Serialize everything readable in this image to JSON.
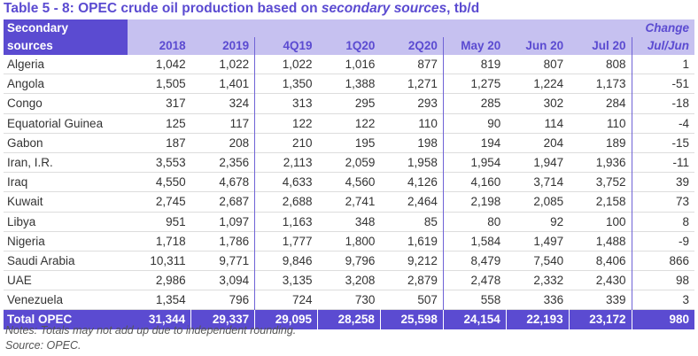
{
  "title": {
    "prefix": "Table 5 - 8: OPEC crude oil production based on ",
    "italic": "secondary sources",
    "suffix": ", tb/d"
  },
  "header": {
    "label_top": "Secondary",
    "label_bottom": "sources",
    "change_top": "Change",
    "columns": [
      "2018",
      "2019",
      "4Q19",
      "1Q20",
      "2Q20",
      "May 20",
      "Jun 20",
      "Jul 20",
      "Jul/Jun"
    ]
  },
  "rows": [
    {
      "name": "Algeria",
      "values": [
        "1,042",
        "1,022",
        "1,022",
        "1,016",
        "877",
        "819",
        "807",
        "808",
        "1"
      ]
    },
    {
      "name": "Angola",
      "values": [
        "1,505",
        "1,401",
        "1,350",
        "1,388",
        "1,271",
        "1,275",
        "1,224",
        "1,173",
        "-51"
      ]
    },
    {
      "name": "Congo",
      "values": [
        "317",
        "324",
        "313",
        "295",
        "293",
        "285",
        "302",
        "284",
        "-18"
      ]
    },
    {
      "name": "Equatorial Guinea",
      "values": [
        "125",
        "117",
        "122",
        "122",
        "110",
        "90",
        "114",
        "110",
        "-4"
      ]
    },
    {
      "name": "Gabon",
      "values": [
        "187",
        "208",
        "210",
        "195",
        "198",
        "194",
        "204",
        "189",
        "-15"
      ]
    },
    {
      "name": "Iran, I.R.",
      "values": [
        "3,553",
        "2,356",
        "2,113",
        "2,059",
        "1,958",
        "1,954",
        "1,947",
        "1,936",
        "-11"
      ]
    },
    {
      "name": "Iraq",
      "values": [
        "4,550",
        "4,678",
        "4,633",
        "4,560",
        "4,126",
        "4,160",
        "3,714",
        "3,752",
        "39"
      ]
    },
    {
      "name": "Kuwait",
      "values": [
        "2,745",
        "2,687",
        "2,688",
        "2,741",
        "2,464",
        "2,198",
        "2,085",
        "2,158",
        "73"
      ]
    },
    {
      "name": "Libya",
      "values": [
        "951",
        "1,097",
        "1,163",
        "348",
        "85",
        "80",
        "92",
        "100",
        "8"
      ]
    },
    {
      "name": "Nigeria",
      "values": [
        "1,718",
        "1,786",
        "1,777",
        "1,800",
        "1,619",
        "1,584",
        "1,497",
        "1,488",
        "-9"
      ]
    },
    {
      "name": "Saudi Arabia",
      "values": [
        "10,311",
        "9,771",
        "9,846",
        "9,796",
        "9,212",
        "8,479",
        "7,540",
        "8,406",
        "866"
      ]
    },
    {
      "name": "UAE",
      "values": [
        "2,986",
        "3,094",
        "3,135",
        "3,208",
        "2,879",
        "2,478",
        "2,332",
        "2,430",
        "98"
      ]
    },
    {
      "name": "Venezuela",
      "values": [
        "1,354",
        "796",
        "724",
        "730",
        "507",
        "558",
        "336",
        "339",
        "3"
      ]
    }
  ],
  "total": {
    "name": "Total  OPEC",
    "values": [
      "31,344",
      "29,337",
      "29,095",
      "28,258",
      "25,598",
      "24,154",
      "22,193",
      "23,172",
      "980"
    ]
  },
  "notes": {
    "line1": "Notes: Totals may not add up due to independent rounding.",
    "line2": "Source: OPEC."
  },
  "colors": {
    "accent": "#5b4bd1",
    "header_fill": "#c6c1f0"
  }
}
